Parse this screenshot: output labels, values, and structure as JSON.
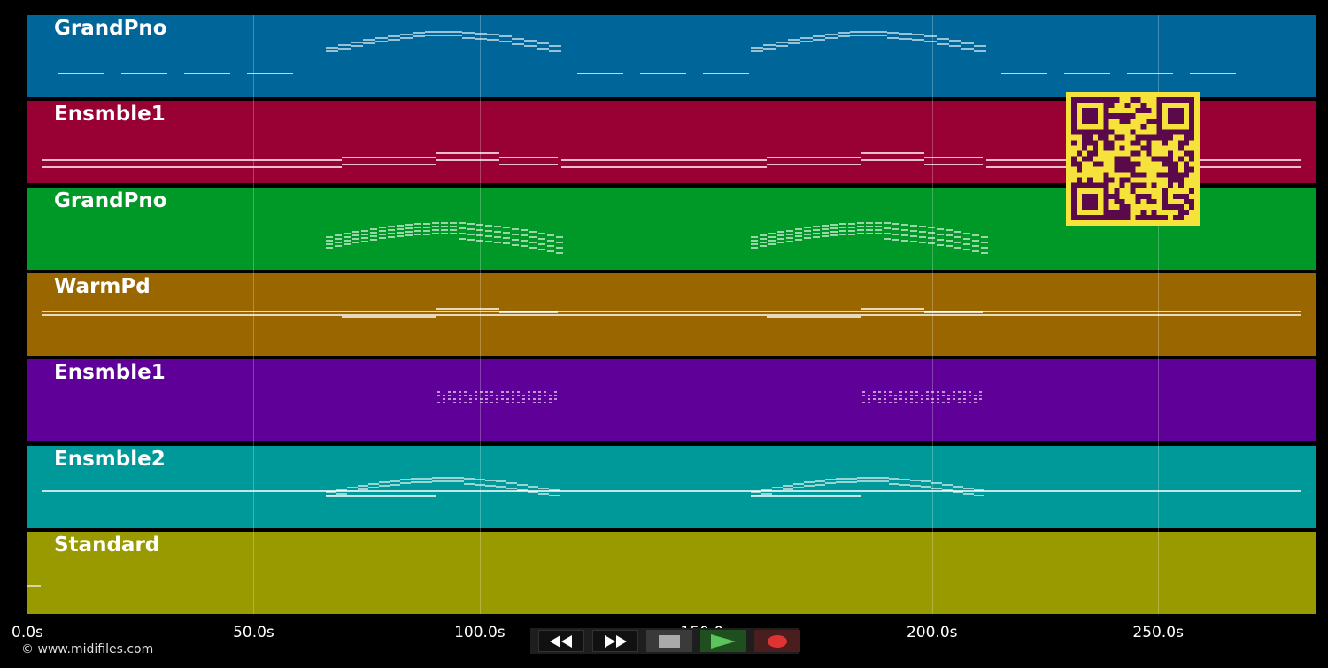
{
  "tracks": [
    {
      "label": "GrandPno",
      "color": "#006699"
    },
    {
      "label": "Ensmble1",
      "color": "#990033"
    },
    {
      "label": "GrandPno",
      "color": "#009927"
    },
    {
      "label": "WarmPd",
      "color": "#996600"
    },
    {
      "label": "Ensmble1",
      "color": "#5f0099"
    },
    {
      "label": "Ensmble2",
      "color": "#009999"
    },
    {
      "label": "Standard",
      "color": "#999900"
    }
  ],
  "timeline": {
    "ticks": [
      "0.0s",
      "50.0s",
      "100.0s",
      "150.0s",
      "200.0s",
      "250.0s"
    ],
    "tick_values": [
      0,
      50,
      100,
      150,
      200,
      250
    ],
    "max_seconds": 285
  },
  "copyright": "© www.midifiles.com",
  "transport": {
    "rewind_icon": "rewind-icon",
    "fast_forward_icon": "fast-forward-icon",
    "stop_icon": "stop-icon",
    "play_icon": "play-icon",
    "record_icon": "record-icon",
    "play_color": "#5cc45c",
    "record_color": "#d33333"
  },
  "qr": {
    "fg": "#5a0a4a",
    "bg": "#f5e23a"
  }
}
